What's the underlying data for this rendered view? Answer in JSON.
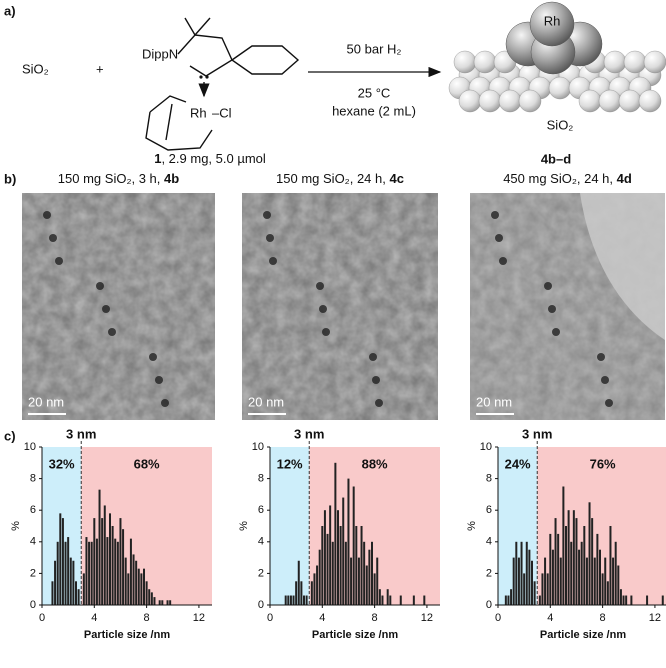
{
  "scheme": {
    "panel_label": "a)",
    "reactant": "SiO₂",
    "plus": "+",
    "ligand_n": "DippN",
    "metal": "Rh",
    "chloride": "–Cl",
    "conditions_1": "50 bar H₂",
    "conditions_2": "25 °C",
    "conditions_3": "hexane  (2 mL)",
    "product_metal": "Rh",
    "product_support": "SiO₂",
    "reagent_id": "1",
    "reagent_amount": ", 2.9 mg, 5.0 µmol",
    "product_id": "4b–d"
  },
  "tem": {
    "panel_label": "b)",
    "scale_bars": [
      "20 nm",
      "20 nm",
      "20 nm"
    ]
  },
  "histogram_panel_label": "c)",
  "chart_data": [
    {
      "type": "bar",
      "title": "150 mg SiO₂, 3 h, ",
      "compound": "4b",
      "color": "#222222",
      "x": [
        0.8,
        1.0,
        1.2,
        1.4,
        1.6,
        1.8,
        2.0,
        2.2,
        2.4,
        2.6,
        2.8,
        3.2,
        3.4,
        3.6,
        3.8,
        4.0,
        4.2,
        4.4,
        4.6,
        4.8,
        5.0,
        5.2,
        5.4,
        5.6,
        5.8,
        6.0,
        6.2,
        6.4,
        6.6,
        6.8,
        7.0,
        7.2,
        7.4,
        7.6,
        7.8,
        8.0,
        8.2,
        8.4,
        8.6,
        9.0,
        9.2,
        9.6,
        9.8
      ],
      "values": [
        1.5,
        2.8,
        4.0,
        5.8,
        5.5,
        4.0,
        4.3,
        3.0,
        2.8,
        1.5,
        1.0,
        2.0,
        4.3,
        4.0,
        4.0,
        5.5,
        4.2,
        7.3,
        5.5,
        6.3,
        4.3,
        5.8,
        5.0,
        4.2,
        4.0,
        5.5,
        4.8,
        3.0,
        2.0,
        4.2,
        3.2,
        2.8,
        2.3,
        2.0,
        2.3,
        1.5,
        1.0,
        0.8,
        0.5,
        0.3,
        0.3,
        0.3,
        0.3
      ],
      "xlim": [
        0,
        13
      ],
      "ylim": [
        0,
        10
      ],
      "xticks": [
        0,
        4,
        8,
        12
      ],
      "yticks": [
        0,
        2,
        4,
        6,
        8,
        10
      ],
      "xlabel": "Particle size /nm",
      "ylabel": "%",
      "threshold": 3,
      "threshold_label": "3 nm",
      "left_label": "32%",
      "right_label": "68%",
      "left_color": "#cdeefa",
      "right_color": "#f9caca"
    },
    {
      "type": "bar",
      "title": "150 mg SiO₂, 24 h, ",
      "compound": "4c",
      "color": "#222222",
      "x": [
        1.2,
        1.4,
        1.6,
        1.8,
        2.0,
        2.2,
        2.4,
        2.6,
        2.8,
        3.2,
        3.4,
        3.6,
        3.8,
        4.0,
        4.2,
        4.4,
        4.6,
        4.8,
        5.0,
        5.2,
        5.4,
        5.6,
        5.8,
        6.0,
        6.2,
        6.4,
        6.6,
        6.8,
        7.0,
        7.2,
        7.4,
        7.6,
        7.8,
        8.0,
        8.2,
        8.4,
        8.6,
        9.0,
        9.2,
        10.0,
        11.0,
        11.8
      ],
      "values": [
        0.6,
        0.6,
        0.6,
        0.6,
        1.5,
        2.8,
        1.5,
        0.6,
        0.6,
        1.5,
        2.0,
        2.5,
        3.5,
        5.0,
        6.0,
        4.5,
        6.3,
        4.0,
        9.0,
        6.0,
        5.0,
        6.8,
        4.0,
        8.0,
        3.0,
        7.5,
        5.0,
        3.0,
        5.0,
        4.0,
        2.5,
        3.5,
        4.0,
        2.0,
        3.0,
        1.0,
        0.6,
        1.0,
        0.6,
        0.6,
        0.6,
        0.6
      ],
      "xlim": [
        0,
        13
      ],
      "ylim": [
        0,
        10
      ],
      "xticks": [
        0,
        4,
        8,
        12
      ],
      "yticks": [
        0,
        2,
        4,
        6,
        8,
        10
      ],
      "xlabel": "Particle size /nm",
      "ylabel": "%",
      "threshold": 3,
      "threshold_label": "3 nm",
      "left_label": "12%",
      "right_label": "88%",
      "left_color": "#cdeefa",
      "right_color": "#f9caca"
    },
    {
      "type": "bar",
      "title": "450 mg SiO₂, 24 h, ",
      "compound": "4d",
      "color": "#222222",
      "x": [
        0.6,
        0.8,
        1.0,
        1.2,
        1.4,
        1.6,
        1.8,
        2.0,
        2.2,
        2.4,
        2.6,
        2.8,
        3.2,
        3.4,
        3.6,
        3.8,
        4.0,
        4.2,
        4.4,
        4.6,
        4.8,
        5.0,
        5.2,
        5.4,
        5.6,
        5.8,
        6.0,
        6.2,
        6.4,
        6.6,
        6.8,
        7.0,
        7.2,
        7.4,
        7.6,
        7.8,
        8.0,
        8.2,
        8.4,
        8.6,
        8.8,
        9.0,
        9.2,
        9.4,
        9.6,
        9.8,
        10.2,
        11.4,
        12.6
      ],
      "values": [
        0.6,
        0.6,
        1.0,
        3.0,
        4.0,
        3.0,
        4.0,
        2.0,
        4.0,
        3.5,
        2.8,
        1.5,
        0.6,
        2.0,
        3.0,
        2.0,
        4.5,
        3.5,
        5.5,
        4.5,
        3.0,
        7.5,
        5.0,
        6.0,
        4.0,
        6.0,
        5.5,
        3.5,
        4.0,
        5.0,
        3.0,
        6.5,
        5.5,
        3.0,
        4.5,
        3.5,
        2.0,
        3.0,
        1.5,
        5.0,
        3.0,
        4.0,
        2.5,
        1.0,
        0.6,
        0.6,
        0.6,
        0.6,
        0.6
      ],
      "xlim": [
        0,
        13
      ],
      "ylim": [
        0,
        10
      ],
      "xticks": [
        0,
        4,
        8,
        12
      ],
      "yticks": [
        0,
        2,
        4,
        6,
        8,
        10
      ],
      "xlabel": "Particle size /nm",
      "ylabel": "%",
      "threshold": 3,
      "threshold_label": "3 nm",
      "left_label": "24%",
      "right_label": "76%",
      "left_color": "#cdeefa",
      "right_color": "#f9caca"
    }
  ]
}
